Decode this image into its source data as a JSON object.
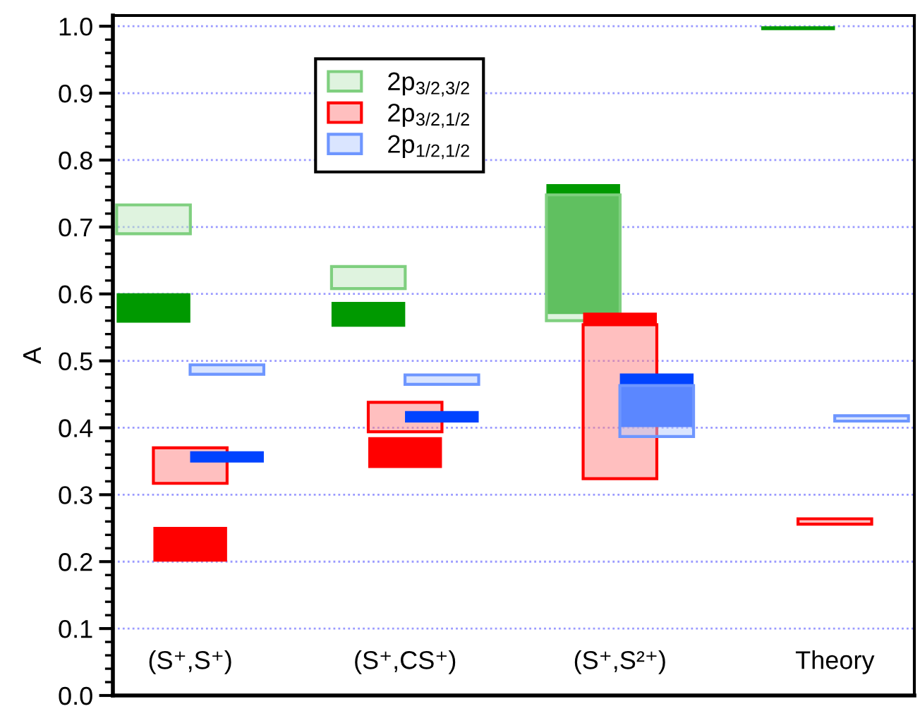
{
  "chart_data": {
    "type": "bar",
    "ylabel": "A",
    "categories": [
      "(S⁺,S⁺)",
      "(S⁺,CS⁺)",
      "(S⁺,S²⁺)",
      "Theory"
    ],
    "series": [
      {
        "color": "#009900",
        "base": [
          0.557,
          0.551,
          0.57,
          0.994
        ],
        "values": [
          0.044,
          0.037,
          0.194,
          0.006
        ]
      },
      {
        "name": "2p$_{3/2,3/2}$",
        "color": "#7fcf7f",
        "base": [
          0.69,
          0.608,
          0.56,
          null
        ],
        "values": [
          0.043,
          0.033,
          0.188,
          null
        ]
      },
      {
        "color": "#ff0000",
        "base": [
          0.2,
          0.34,
          0.554,
          null
        ],
        "values": [
          0.052,
          0.046,
          0.018,
          null
        ]
      },
      {
        "name": "2p$_{3/2,1/2}$",
        "color": "#ff0000",
        "base": [
          0.317,
          0.394,
          0.324,
          0.256
        ],
        "values": [
          0.053,
          0.044,
          0.23,
          0.008
        ]
      },
      {
        "color": "#0043ff",
        "base": [
          0.348,
          0.408,
          0.401,
          null
        ],
        "values": [
          0.017,
          0.017,
          0.08,
          null
        ]
      },
      {
        "name": "2p$_{1/2,1/2}$",
        "color": "#6e96ff",
        "base": [
          0.48,
          0.465,
          0.387,
          0.41
        ],
        "values": [
          0.014,
          0.014,
          0.076,
          0.008
        ]
      }
    ],
    "ylim": [
      0,
      1.016
    ],
    "yticks": [
      {
        "value": 0,
        "label": "0.0"
      },
      0.1,
      0.2,
      0.3,
      0.4,
      0.5,
      0.6,
      0.7,
      0.8,
      0.9,
      {
        "value": 1,
        "label": "1.0"
      }
    ],
    "grid": "y",
    "legend": "top left"
  }
}
